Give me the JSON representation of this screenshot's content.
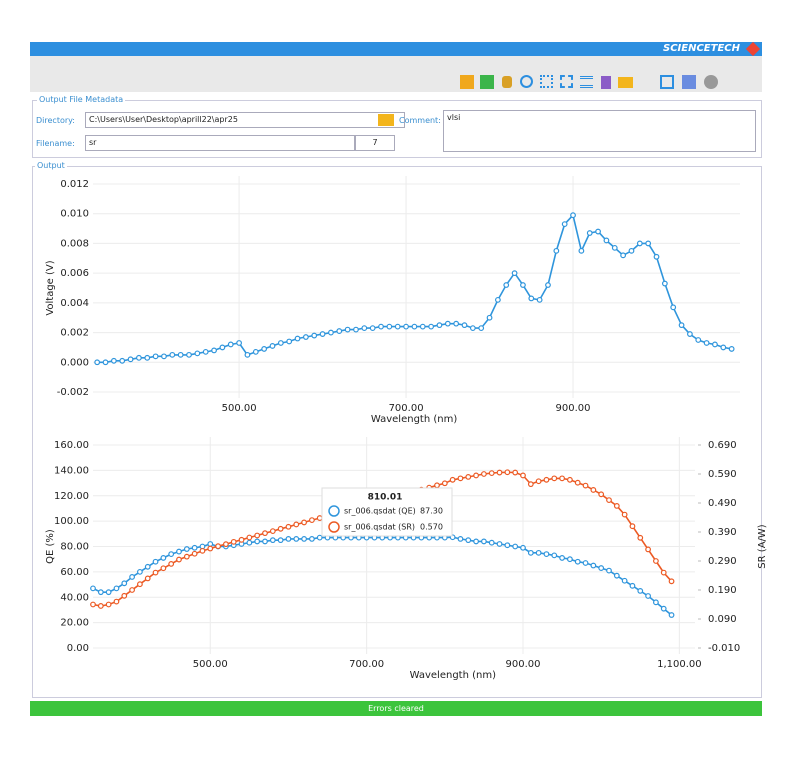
{
  "brand": "SCIENCETECH",
  "metadata": {
    "title": "Output File Metadata",
    "directory_label": "Directory:",
    "directory": "C:\\Users\\User\\Desktop\\aprill22\\apr25",
    "comment_label": "Comment:",
    "comment": "vlsi",
    "filename_label": "Filename:",
    "filename": "sr",
    "index": "7"
  },
  "output_title": "Output",
  "status": "Errors cleared",
  "chart_data": [
    {
      "type": "line",
      "xlabel": "Wavelength (nm)",
      "ylabel": "Voltage (V)",
      "x": [
        330,
        340,
        350,
        360,
        370,
        380,
        390,
        400,
        410,
        420,
        430,
        440,
        450,
        460,
        470,
        480,
        490,
        500,
        510,
        520,
        530,
        540,
        550,
        560,
        570,
        580,
        590,
        600,
        610,
        620,
        630,
        640,
        650,
        660,
        670,
        680,
        690,
        700,
        710,
        720,
        730,
        740,
        750,
        760,
        770,
        780,
        790,
        800,
        810,
        820,
        830,
        840,
        850,
        860,
        870,
        880,
        890,
        900,
        910,
        920,
        930,
        940,
        950,
        960,
        970,
        980,
        990,
        1000,
        1010,
        1020,
        1030,
        1040,
        1050,
        1060,
        1070,
        1080,
        1090
      ],
      "series": [
        {
          "color": "#2f95dc",
          "values": [
            0,
            0,
            0.0001,
            0.0001,
            0.0002,
            0.0003,
            0.0003,
            0.0004,
            0.0004,
            0.0005,
            0.0005,
            0.0005,
            0.0006,
            0.0007,
            0.0008,
            0.001,
            0.0012,
            0.0013,
            0.0005,
            0.0007,
            0.0009,
            0.0011,
            0.0013,
            0.0014,
            0.0016,
            0.0017,
            0.0018,
            0.0019,
            0.002,
            0.0021,
            0.0022,
            0.0022,
            0.0023,
            0.0023,
            0.0024,
            0.0024,
            0.0024,
            0.0024,
            0.0024,
            0.0024,
            0.0024,
            0.0025,
            0.0026,
            0.0026,
            0.0025,
            0.0023,
            0.0023,
            0.003,
            0.0042,
            0.0052,
            0.006,
            0.0052,
            0.0043,
            0.0042,
            0.0052,
            0.0075,
            0.0093,
            0.0099,
            0.0075,
            0.0087,
            0.0088,
            0.0082,
            0.0077,
            0.0072,
            0.0075,
            0.008,
            0.008,
            0.0071,
            0.0053,
            0.0037,
            0.0025,
            0.0019,
            0.0015,
            0.0013,
            0.0012,
            0.001,
            0.0009
          ]
        }
      ],
      "xlim": [
        325,
        1100
      ],
      "xticks": [
        {
          "value": 500,
          "label": "500.00"
        },
        {
          "value": 700,
          "label": "700.00"
        },
        {
          "value": 900,
          "label": "900.00"
        }
      ],
      "ylim": [
        -0.002,
        0.012
      ],
      "yticks": [
        {
          "value": -0.002,
          "label": "-0.002"
        },
        {
          "value": 0,
          "label": "0.000"
        },
        {
          "value": 0.002,
          "label": "0.002"
        },
        {
          "value": 0.004,
          "label": "0.004"
        },
        {
          "value": 0.006,
          "label": "0.006"
        },
        {
          "value": 0.008,
          "label": "0.008"
        },
        {
          "value": 0.01,
          "label": "0.010"
        },
        {
          "value": 0.012,
          "label": "0.012"
        }
      ],
      "grid": true
    },
    {
      "type": "line",
      "xlabel": "Wavelength (nm)",
      "ylabel": "QE (%)",
      "y2label": "SR (A/W)",
      "x": [
        350,
        360,
        370,
        380,
        390,
        400,
        410,
        420,
        430,
        440,
        450,
        460,
        470,
        480,
        490,
        500,
        510,
        520,
        530,
        540,
        550,
        560,
        570,
        580,
        590,
        600,
        610,
        620,
        630,
        640,
        650,
        660,
        670,
        680,
        690,
        700,
        710,
        720,
        730,
        740,
        750,
        760,
        770,
        780,
        790,
        800,
        810,
        820,
        830,
        840,
        850,
        860,
        870,
        880,
        890,
        900,
        910,
        920,
        930,
        940,
        950,
        960,
        970,
        980,
        990,
        1000,
        1010,
        1020,
        1030,
        1040,
        1050,
        1060,
        1070,
        1080,
        1090
      ],
      "series": [
        {
          "name": "sr_006.qsdat (QE)",
          "color": "#2f95dc",
          "values": [
            47,
            44,
            44,
            47,
            51,
            56,
            60,
            64,
            68,
            71,
            74,
            76,
            78,
            79,
            80,
            82,
            80,
            80,
            81,
            82,
            83,
            84,
            84,
            85,
            85,
            86,
            86,
            86,
            86,
            87,
            87,
            87,
            87,
            87,
            87,
            87,
            87,
            87,
            87,
            87,
            87,
            87,
            87,
            87,
            87,
            87,
            87.3,
            86,
            85,
            84,
            84,
            83,
            82,
            81,
            80,
            79,
            75,
            75,
            74,
            73,
            71,
            70,
            68,
            67,
            65,
            63,
            61,
            57,
            53,
            49,
            45,
            41,
            36,
            31,
            26
          ]
        },
        {
          "name": "sr_006.qsdat (SR)",
          "color": "#ec5a24",
          "axis": "y2",
          "values": [
            0.14,
            0.135,
            0.14,
            0.15,
            0.17,
            0.19,
            0.21,
            0.23,
            0.25,
            0.265,
            0.28,
            0.295,
            0.305,
            0.315,
            0.325,
            0.333,
            0.341,
            0.348,
            0.356,
            0.363,
            0.371,
            0.378,
            0.386,
            0.393,
            0.401,
            0.408,
            0.416,
            0.423,
            0.431,
            0.438,
            0.446,
            0.453,
            0.461,
            0.468,
            0.476,
            0.483,
            0.491,
            0.498,
            0.506,
            0.513,
            0.521,
            0.528,
            0.536,
            0.543,
            0.551,
            0.558,
            0.57,
            0.575,
            0.58,
            0.585,
            0.59,
            0.593,
            0.595,
            0.596,
            0.595,
            0.585,
            0.555,
            0.565,
            0.57,
            0.575,
            0.575,
            0.57,
            0.56,
            0.55,
            0.535,
            0.52,
            0.5,
            0.48,
            0.45,
            0.41,
            0.37,
            0.33,
            0.29,
            0.25,
            0.22
          ]
        }
      ],
      "xlim": [
        350,
        1120
      ],
      "xticks": [
        {
          "value": 500,
          "label": "500.00"
        },
        {
          "value": 700,
          "label": "700.00"
        },
        {
          "value": 900,
          "label": "900.00"
        },
        {
          "value": 1100,
          "label": "1,100.00"
        }
      ],
      "ylim": [
        0,
        160
      ],
      "yticks": [
        {
          "value": 0,
          "label": "0.00"
        },
        {
          "value": 20,
          "label": "20.00"
        },
        {
          "value": 40,
          "label": "40.00"
        },
        {
          "value": 60,
          "label": "60.00"
        },
        {
          "value": 80,
          "label": "80.00"
        },
        {
          "value": 100,
          "label": "100.00"
        },
        {
          "value": 120,
          "label": "120.00"
        },
        {
          "value": 140,
          "label": "140.00"
        },
        {
          "value": 160,
          "label": "160.00"
        }
      ],
      "y2lim": [
        -0.01,
        0.69
      ],
      "y2ticks": [
        {
          "value": -0.01,
          "label": "-0.010"
        },
        {
          "value": 0.09,
          "label": "0.090"
        },
        {
          "value": 0.19,
          "label": "0.190"
        },
        {
          "value": 0.29,
          "label": "0.290"
        },
        {
          "value": 0.39,
          "label": "0.390"
        },
        {
          "value": 0.49,
          "label": "0.490"
        },
        {
          "value": 0.59,
          "label": "0.590"
        },
        {
          "value": 0.69,
          "label": "0.690"
        }
      ],
      "grid": true,
      "tooltip": {
        "x": "810.01",
        "qe": "87.30",
        "sr": "0.570"
      }
    }
  ]
}
